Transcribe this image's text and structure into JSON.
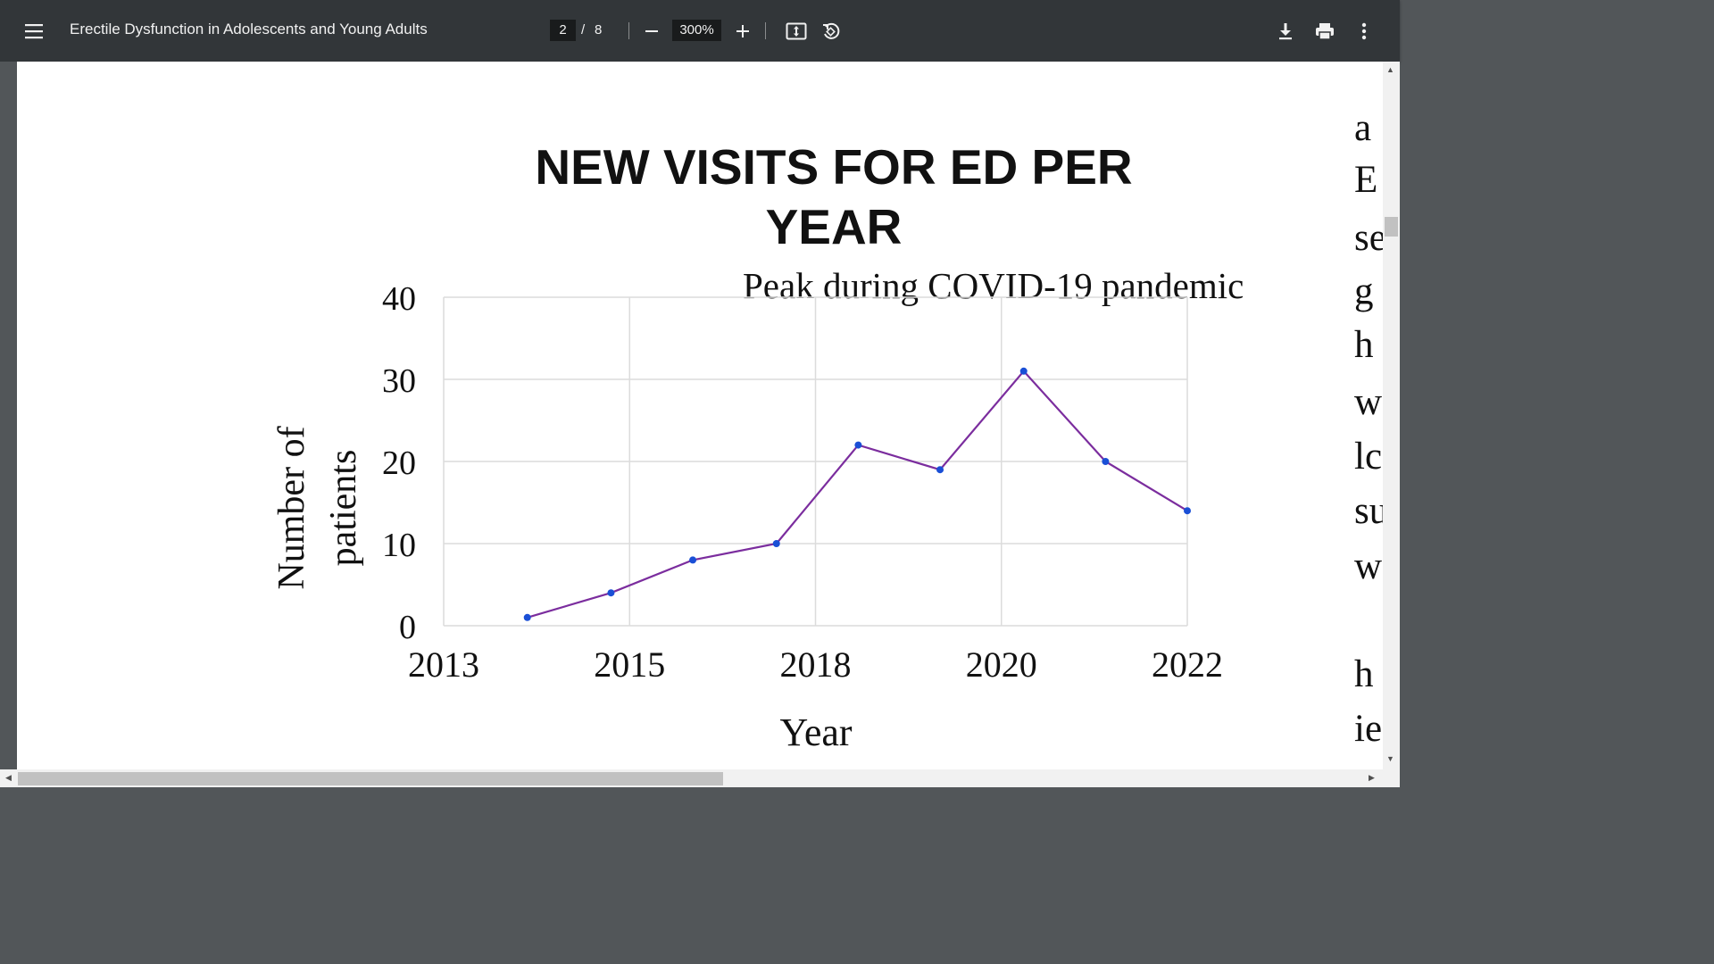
{
  "toolbar": {
    "title": "Erectile Dysfunction in Adolescents and Young Adults",
    "page_current": "2",
    "page_separator": "/",
    "page_total": "8",
    "zoom": "300%",
    "icons": {
      "menu": "menu-icon",
      "zoom_out": "minus-icon",
      "zoom_in": "plus-icon",
      "fit": "fit-to-page-icon",
      "rotate": "rotate-icon",
      "download": "download-icon",
      "print": "print-icon",
      "more": "more-vert-icon"
    }
  },
  "chart_data": {
    "type": "line",
    "title": "NEW VISITS FOR ED PER YEAR",
    "annotation": "Peak during COVID-19 pandemic",
    "xlabel": "Year",
    "ylabel": "Number of patients",
    "ylim": [
      0,
      40
    ],
    "yticks": [
      0,
      10,
      20,
      30,
      40
    ],
    "xlim": [
      2013,
      2022
    ],
    "xticks": [
      2013,
      2015,
      2018,
      2020,
      2022
    ],
    "x_axis_scale": "tick-index (ticks spaced evenly despite unequal year gaps)",
    "grid": true,
    "line_color": "#7b2d9e",
    "marker_color": "#1a4fd6",
    "points": [
      {
        "x": 0.45,
        "y": 1
      },
      {
        "x": 0.9,
        "y": 4
      },
      {
        "x": 1.34,
        "y": 8
      },
      {
        "x": 1.79,
        "y": 10
      },
      {
        "x": 2.23,
        "y": 22
      },
      {
        "x": 2.67,
        "y": 19
      },
      {
        "x": 3.12,
        "y": 31
      },
      {
        "x": 3.56,
        "y": 20
      },
      {
        "x": 4.0,
        "y": 14
      }
    ]
  },
  "right_column_fragments": [
    "a",
    "E",
    "se",
    "g",
    "h",
    "w",
    "lc",
    "su",
    "w",
    "h",
    "ie"
  ]
}
